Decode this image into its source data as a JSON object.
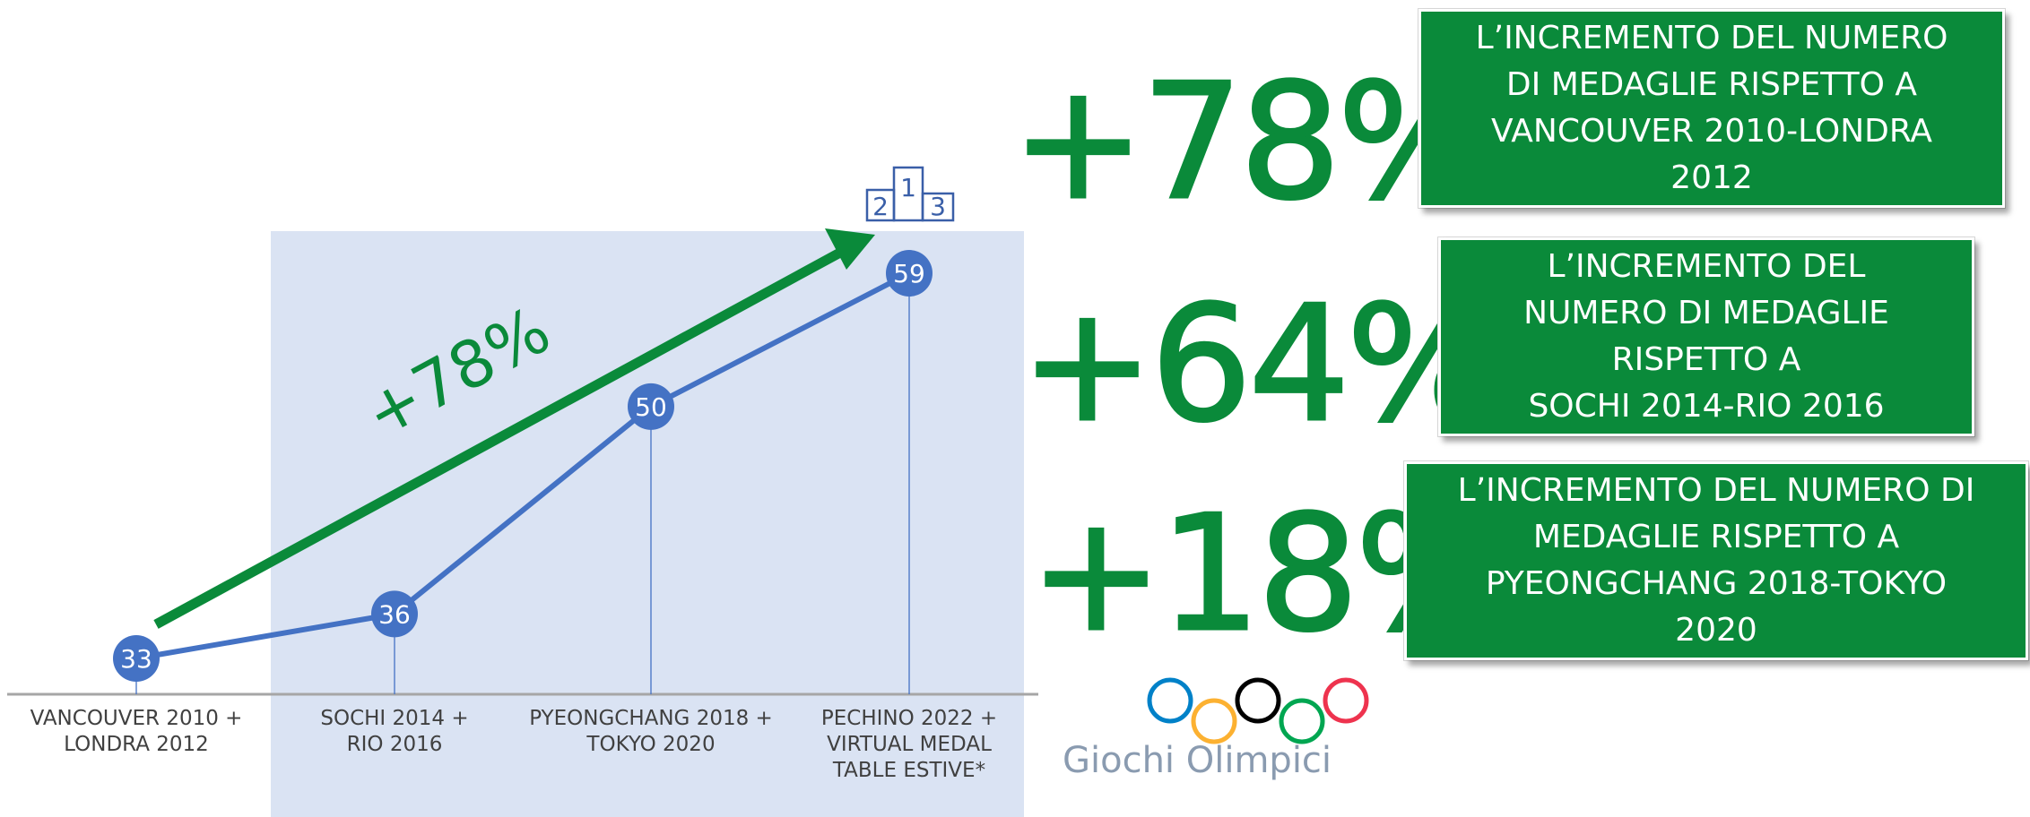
{
  "chart_data": {
    "type": "line",
    "categories": [
      "VANCOUVER 2010 +\nLONDRA 2012",
      "SOCHI 2014 +\nRIO 2016",
      "PYEONGCHANG 2018 +\nTOKYO 2020",
      "PECHINO 2022 +\nVIRTUAL MEDAL\nTABLE ESTIVE*"
    ],
    "values": [
      33,
      36,
      50,
      59
    ],
    "data_labels": [
      "33",
      "36",
      "50",
      "59"
    ],
    "highlight_range": [
      "SOCHI 2014 +\nRIO 2016",
      "PECHINO 2022 +\nVIRTUAL MEDAL\nTABLE ESTIVE*"
    ],
    "trend_annotation": "+78%",
    "grid": false,
    "legend": "none",
    "colors": {
      "line": "#4472c4",
      "marker": "#4472c4",
      "highlight_band": "#dae3f3",
      "trend_arrow": "#0a8a3a",
      "axis": "#a6a6a6",
      "podium": "#3a5fa8"
    }
  },
  "podium": {
    "digits": [
      "2",
      "1",
      "3"
    ]
  },
  "summary": [
    {
      "percent": "+78%",
      "description": "L’INCREMENTO DEL NUMERO\nDI MEDAGLIE RISPETTO A\nVANCOUVER 2010-LONDRA\n2012"
    },
    {
      "percent": "+64%",
      "description": "L’INCREMENTO DEL\nNUMERO DI MEDAGLIE\nRISPETTO A\nSOCHI 2014-RIO 2016"
    },
    {
      "percent": "+18%",
      "description": "L’INCREMENTO DEL NUMERO DI\nMEDAGLIE RISPETTO A\nPYEONGCHANG  2018-TOKYO\n2020"
    }
  ],
  "logo": {
    "text": "Giochi Olimpici",
    "ring_colors": [
      "#0081c8",
      "#fcb131",
      "#000000",
      "#00a651",
      "#ee334e"
    ]
  }
}
